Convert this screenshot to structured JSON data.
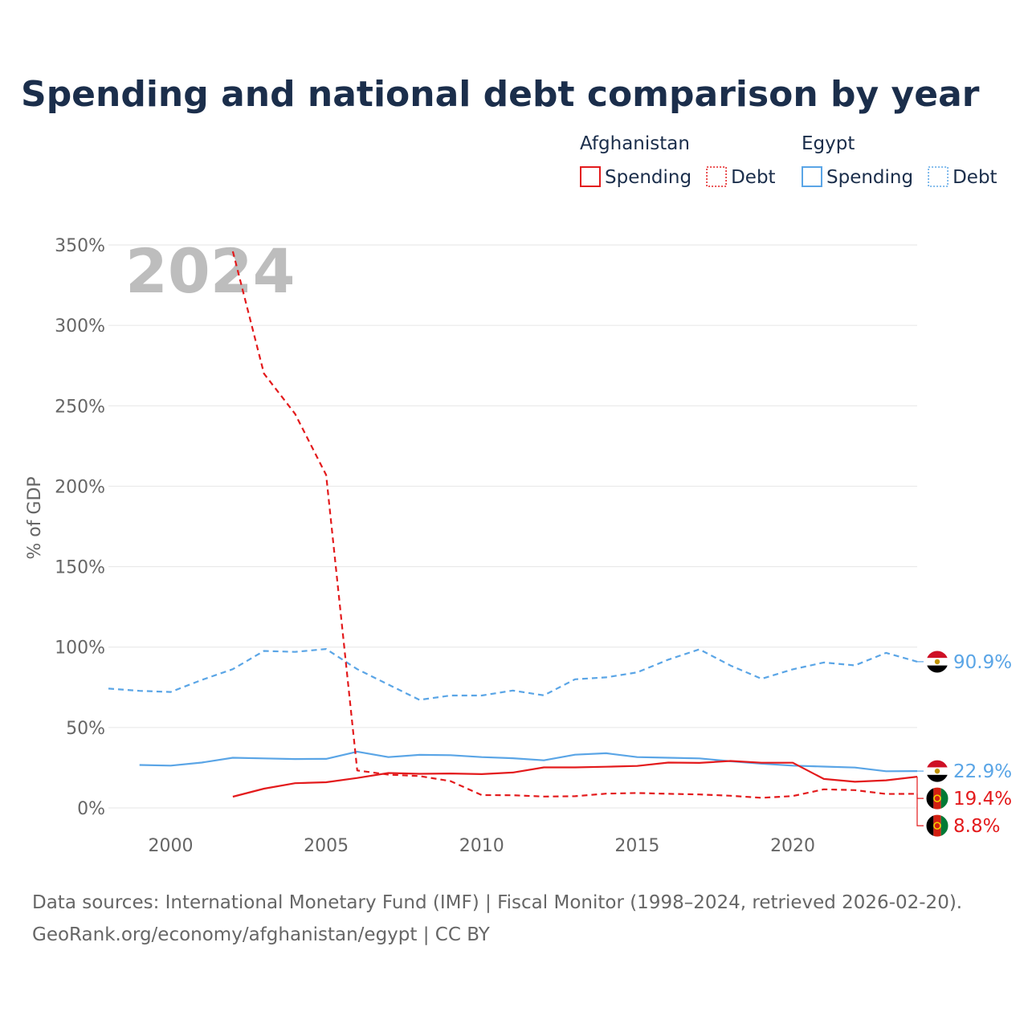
{
  "title": "Spending and national debt comparison by year",
  "year_overlay": "2024",
  "legend": {
    "groups": [
      {
        "name": "Afghanistan",
        "color": "#e31a1c",
        "items": [
          {
            "label": "Spending",
            "style": "solid"
          },
          {
            "label": "Debt",
            "style": "dotted"
          }
        ]
      },
      {
        "name": "Egypt",
        "color": "#5aa5e6",
        "items": [
          {
            "label": "Spending",
            "style": "solid"
          },
          {
            "label": "Debt",
            "style": "dotted"
          }
        ]
      }
    ]
  },
  "footer": {
    "line1": "Data sources: International Monetary Fund (IMF) | Fiscal Monitor (1998–2024, retrieved 2026-02-20).",
    "line2": "GeoRank.org/economy/afghanistan/egypt | CC BY"
  },
  "chart_data": {
    "type": "line",
    "ylabel": "% of GDP",
    "xlabel": "",
    "xlim": [
      1998,
      2024
    ],
    "ylim": [
      0,
      350
    ],
    "yticks": [
      0,
      50,
      100,
      150,
      200,
      250,
      300,
      350
    ],
    "ytick_labels": [
      "0%",
      "50%",
      "100%",
      "150%",
      "200%",
      "250%",
      "300%",
      "350%"
    ],
    "xticks": [
      2000,
      2005,
      2010,
      2015,
      2020
    ],
    "xtick_labels": [
      "2000",
      "2005",
      "2010",
      "2015",
      "2020"
    ],
    "grid": true,
    "series": [
      {
        "name": "Egypt Debt",
        "country": "Egypt",
        "measure": "Debt",
        "color": "#5aa5e6",
        "dash": "dashed",
        "end_label": "90.9%",
        "x": [
          1998,
          1999,
          2000,
          2001,
          2002,
          2003,
          2004,
          2005,
          2006,
          2007,
          2008,
          2009,
          2010,
          2011,
          2012,
          2013,
          2014,
          2015,
          2016,
          2017,
          2018,
          2019,
          2020,
          2021,
          2022,
          2023,
          2024
        ],
        "values": [
          74.2,
          72.8,
          72.1,
          79.6,
          86.3,
          97.6,
          97.0,
          98.8,
          86.3,
          76.7,
          67.2,
          69.9,
          69.9,
          73.0,
          70.0,
          80.0,
          81.2,
          84.3,
          92.2,
          98.6,
          88.5,
          80.3,
          86.2,
          90.4,
          88.6,
          96.4,
          90.9
        ]
      },
      {
        "name": "Egypt Spending",
        "country": "Egypt",
        "measure": "Spending",
        "color": "#5aa5e6",
        "dash": "solid",
        "end_label": "22.9%",
        "x": [
          1999,
          2000,
          2001,
          2002,
          2003,
          2004,
          2005,
          2006,
          2007,
          2008,
          2009,
          2010,
          2011,
          2012,
          2013,
          2014,
          2015,
          2016,
          2017,
          2018,
          2019,
          2020,
          2021,
          2022,
          2023,
          2024
        ],
        "values": [
          26.7,
          26.3,
          28.2,
          31.2,
          30.8,
          30.4,
          30.5,
          35.0,
          31.6,
          33.0,
          32.8,
          31.6,
          30.9,
          29.6,
          33.1,
          34.0,
          31.6,
          31.2,
          30.8,
          29.0,
          27.5,
          26.3,
          25.7,
          25.1,
          22.8,
          22.9
        ]
      },
      {
        "name": "Afghanistan Spending",
        "country": "Afghanistan",
        "measure": "Spending",
        "color": "#e31a1c",
        "dash": "solid",
        "end_label": "19.4%",
        "x": [
          2002,
          2003,
          2004,
          2005,
          2006,
          2007,
          2008,
          2009,
          2010,
          2011,
          2012,
          2013,
          2014,
          2015,
          2016,
          2017,
          2018,
          2019,
          2020,
          2021,
          2022,
          2023,
          2024
        ],
        "values": [
          7.0,
          12.0,
          15.4,
          16.0,
          18.6,
          21.7,
          21.2,
          21.4,
          21.0,
          22.0,
          25.2,
          25.2,
          25.6,
          26.1,
          28.2,
          28.0,
          29.2,
          28.1,
          28.1,
          18.0,
          16.3,
          17.2,
          19.4
        ]
      },
      {
        "name": "Afghanistan Debt",
        "country": "Afghanistan",
        "measure": "Debt",
        "color": "#e31a1c",
        "dash": "dashed",
        "end_label": "8.8%",
        "x": [
          2002,
          2003,
          2004,
          2005,
          2006,
          2007,
          2008,
          2009,
          2010,
          2011,
          2012,
          2013,
          2014,
          2015,
          2016,
          2017,
          2018,
          2019,
          2020,
          2021,
          2022,
          2023,
          2024
        ],
        "values": [
          346,
          270,
          245,
          207,
          23.3,
          20.7,
          19.8,
          16.7,
          8.0,
          7.9,
          7.1,
          7.3,
          8.9,
          9.3,
          8.8,
          8.4,
          7.6,
          6.3,
          7.4,
          11.6,
          11.1,
          8.7,
          8.8
        ]
      }
    ]
  }
}
